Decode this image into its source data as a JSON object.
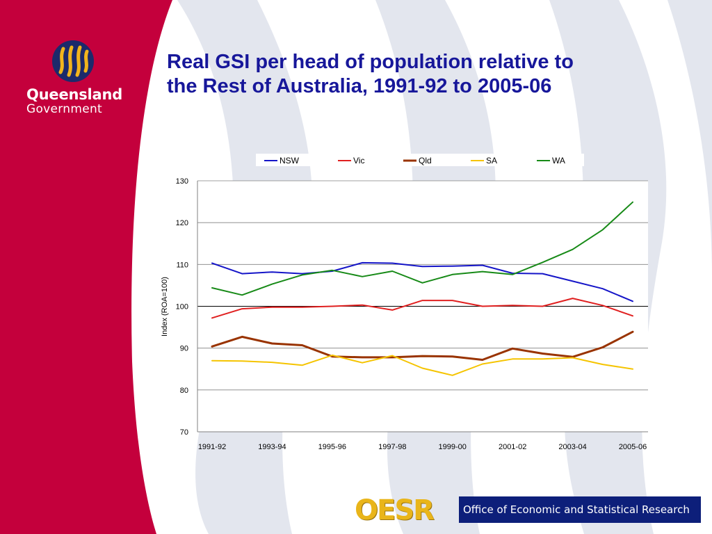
{
  "branding": {
    "logo_line1": "Queensland",
    "logo_line2": "Government",
    "oesr_word": "OESR",
    "oesr_full": "Office of Economic and Statistical Research",
    "colors": {
      "sidebar": "#c4003c",
      "swirl": "#e3e6ee",
      "oesr_gold": "#e9b51a",
      "oesr_blue": "#0d1f7a"
    }
  },
  "title": {
    "line1": "Real GSI per head of population relative to",
    "line2": "the Rest of Australia, 1991-92 to 2005-06",
    "color": "#17179a"
  },
  "chart_data": {
    "type": "line",
    "title": "Real GSI per head of population relative to the Rest of Australia, 1991-92 to 2005-06",
    "xlabel": "",
    "ylabel": "Index (ROA=100)",
    "ylim": [
      70,
      130
    ],
    "yticks": [
      70,
      80,
      90,
      100,
      110,
      120,
      130
    ],
    "grid": true,
    "reference_line": 100,
    "legend_position": "top",
    "x": [
      "1991-92",
      "1992-93",
      "1993-94",
      "1994-95",
      "1995-96",
      "1996-97",
      "1997-98",
      "1998-99",
      "1999-00",
      "2000-01",
      "2001-02",
      "2002-03",
      "2003-04",
      "2004-05",
      "2005-06"
    ],
    "xtick_labels": [
      "1991-92",
      "1993-94",
      "1995-96",
      "1997-98",
      "1999-00",
      "2001-02",
      "2003-04",
      "2005-06"
    ],
    "series": [
      {
        "name": "NSW",
        "color": "#1515c8",
        "width": 2,
        "values": [
          110.3,
          107.8,
          108.2,
          107.8,
          108.4,
          110.4,
          110.3,
          109.5,
          109.6,
          109.8,
          107.9,
          107.8,
          106.0,
          104.2,
          101.2
        ]
      },
      {
        "name": "Vic",
        "color": "#e02020",
        "width": 2,
        "values": [
          97.2,
          99.4,
          99.8,
          99.8,
          100.0,
          100.3,
          99.1,
          101.4,
          101.4,
          100.0,
          100.2,
          100.0,
          101.9,
          100.2,
          97.7
        ]
      },
      {
        "name": "Qld",
        "color": "#993300",
        "width": 3,
        "values": [
          90.4,
          92.7,
          91.1,
          90.7,
          88.0,
          87.8,
          87.8,
          88.1,
          88.0,
          87.2,
          89.9,
          88.7,
          87.9,
          90.2,
          93.9
        ]
      },
      {
        "name": "SA",
        "color": "#f5c400",
        "width": 2,
        "values": [
          87.0,
          86.9,
          86.6,
          85.9,
          88.3,
          86.5,
          88.2,
          85.2,
          83.5,
          86.2,
          87.4,
          87.4,
          87.7,
          86.1,
          85.0
        ]
      },
      {
        "name": "WA",
        "color": "#178a17",
        "width": 2,
        "values": [
          104.4,
          102.7,
          105.3,
          107.5,
          108.6,
          107.1,
          108.4,
          105.6,
          107.6,
          108.3,
          107.6,
          110.5,
          113.6,
          118.3,
          124.9
        ]
      }
    ]
  }
}
